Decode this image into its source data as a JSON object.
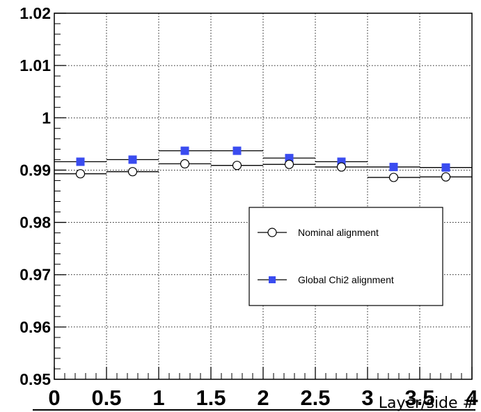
{
  "chart_data": {
    "type": "scatter",
    "title": "",
    "xlabel": "Layer/side #",
    "ylabel": "",
    "xlim": [
      0,
      4
    ],
    "ylim": [
      0.95,
      1.02
    ],
    "grid": true,
    "legend_position": "lower-right",
    "x_ticks": [
      "0",
      "0.5",
      "1",
      "1.5",
      "2",
      "2.5",
      "3",
      "3.5",
      "4"
    ],
    "y_ticks": [
      "0.95",
      "0.96",
      "0.97",
      "0.98",
      "0.99",
      "1",
      "1.01",
      "1.02"
    ],
    "bin_edges": [
      0,
      0.5,
      1,
      1.5,
      2,
      2.5,
      3,
      3.5,
      4
    ],
    "x": [
      0.25,
      0.75,
      1.25,
      1.75,
      2.25,
      2.75,
      3.25,
      3.75
    ],
    "series": [
      {
        "name": "Nominal alignment",
        "marker": "open-circle",
        "color": "#000000",
        "values": [
          0.9893,
          0.9897,
          0.9912,
          0.9909,
          0.9911,
          0.9906,
          0.9886,
          0.9887
        ]
      },
      {
        "name": "Global Chi2 alignment",
        "marker": "filled-square",
        "color": "#3a4cf0",
        "values": [
          0.9916,
          0.992,
          0.9937,
          0.9937,
          0.9923,
          0.9916,
          0.9906,
          0.9905
        ]
      }
    ]
  }
}
